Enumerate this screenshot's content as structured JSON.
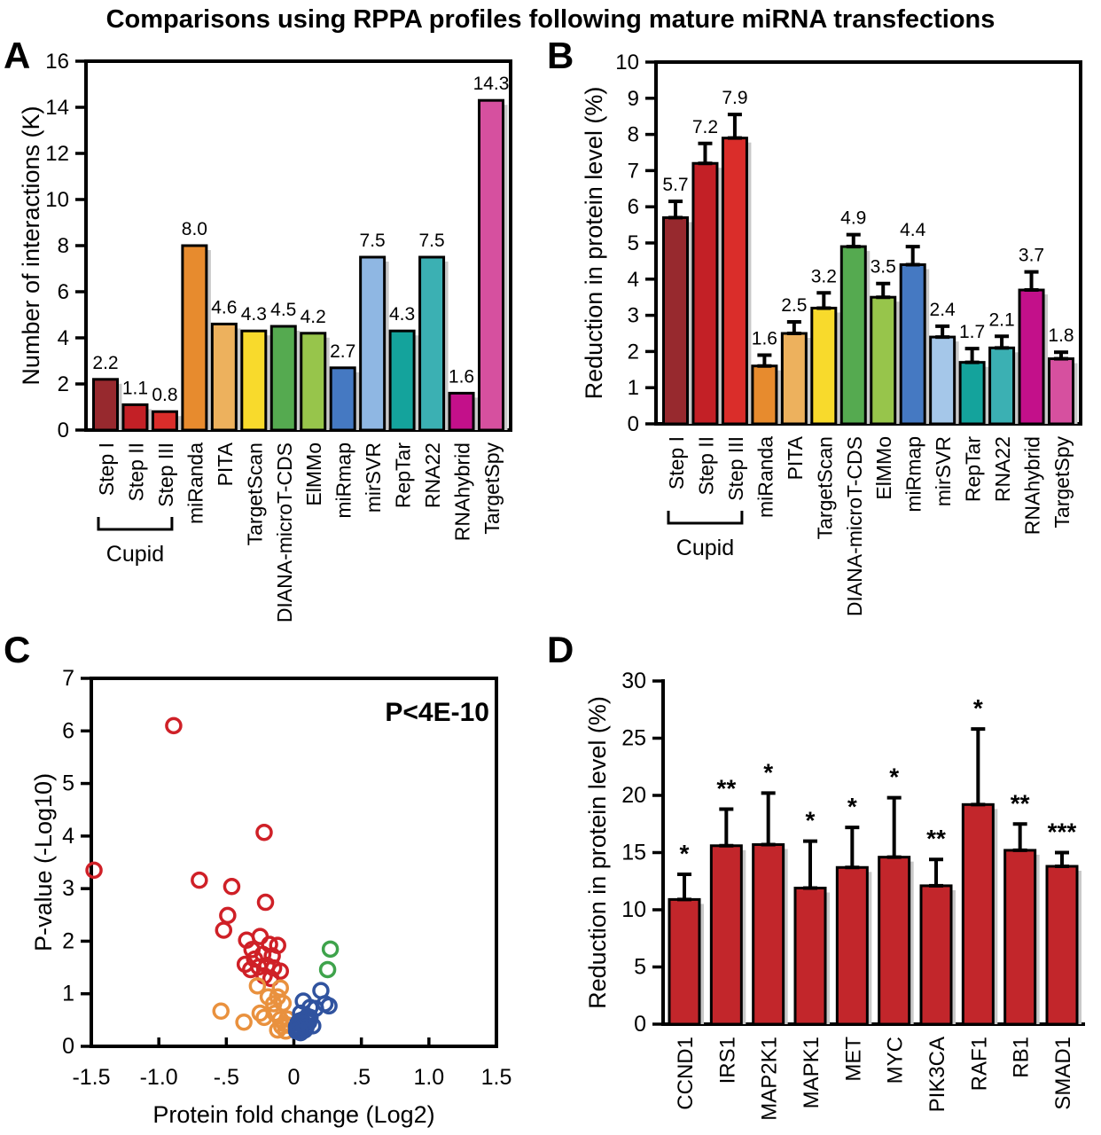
{
  "figure_title": "Comparisons using RPPA profiles following mature miRNA transfections",
  "panel_letters": [
    "A",
    "B",
    "C",
    "D"
  ],
  "colors": {
    "bar_outline": "#000000",
    "bar_shadow": "#c9c9c9",
    "panel_d_bar": "#c2262b"
  },
  "chart_data": [
    {
      "panel": "A",
      "type": "bar",
      "ylabel": "Number of interactions (K)",
      "ylim": [
        0,
        16
      ],
      "ytick_step": 2,
      "value_labels": true,
      "categories": [
        "Step I",
        "Step II",
        "Step III",
        "miRanda",
        "PITA",
        "TargetScan",
        "DIANA-microT-CDS",
        "ElMMo",
        "miRmap",
        "mirSVR",
        "RepTar",
        "RNA22",
        "RNAhybrid",
        "TargetSpy"
      ],
      "values": [
        2.2,
        1.1,
        0.8,
        8.0,
        4.6,
        4.3,
        4.5,
        4.2,
        2.7,
        7.5,
        4.3,
        7.5,
        1.6,
        14.3
      ],
      "colors": [
        "#97292e",
        "#c32026",
        "#da2d2a",
        "#e78b2e",
        "#edb15d",
        "#f8da2c",
        "#55aa50",
        "#97c54b",
        "#4579c2",
        "#8fb7e3",
        "#14a39c",
        "#3bb0b3",
        "#c3108a",
        "#d6509f"
      ],
      "group": {
        "label": "Cupid",
        "from": 0,
        "to": 2
      }
    },
    {
      "panel": "B",
      "type": "bar",
      "ylabel": "Reduction in protein level (%)",
      "ylim": [
        0,
        10
      ],
      "ytick_step": 1,
      "value_labels": true,
      "categories": [
        "Step I",
        "Step II",
        "Step III",
        "miRanda",
        "PITA",
        "TargetScan",
        "DIANA-microT-CDS",
        "ElMMo",
        "miRmap",
        "mirSVR",
        "RepTar",
        "RNA22",
        "RNAhybrid",
        "TargetSpy"
      ],
      "values": [
        5.7,
        7.2,
        7.9,
        1.6,
        2.5,
        3.2,
        4.9,
        3.5,
        4.4,
        2.4,
        1.7,
        2.1,
        3.7,
        1.8
      ],
      "errors": [
        0.45,
        0.55,
        0.65,
        0.3,
        0.32,
        0.42,
        0.33,
        0.38,
        0.5,
        0.3,
        0.38,
        0.32,
        0.5,
        0.18
      ],
      "colors": [
        "#97292e",
        "#c32026",
        "#da2d2a",
        "#e78b2e",
        "#edb15d",
        "#f8da2c",
        "#55aa50",
        "#97c54b",
        "#4579c2",
        "#a5c7e9",
        "#14a39c",
        "#3bb0b3",
        "#c3108a",
        "#d6509f"
      ],
      "group": {
        "label": "Cupid",
        "from": 0,
        "to": 2
      }
    },
    {
      "panel": "C",
      "type": "scatter",
      "xlabel": "Protein fold change (Log2)",
      "ylabel": "P-value (-Log10)",
      "annotation": "P<4E-10",
      "xlim": [
        -1.5,
        1.5
      ],
      "ylim": [
        0,
        7
      ],
      "xtick_labels": [
        "-1.5",
        "-1.0",
        "-.5",
        "0",
        ".5",
        "1.0",
        "1.5"
      ],
      "ytick_step": 1,
      "series": [
        {
          "name": "red",
          "color": "#cf2027",
          "points": [
            [
              -0.89,
              6.1
            ],
            [
              -0.22,
              4.07
            ],
            [
              -1.48,
              3.35
            ],
            [
              -0.7,
              3.16
            ],
            [
              -0.46,
              3.04
            ],
            [
              -0.21,
              2.74
            ],
            [
              -0.49,
              2.49
            ],
            [
              -0.52,
              2.21
            ],
            [
              -0.25,
              2.09
            ],
            [
              -0.35,
              2.02
            ],
            [
              -0.18,
              1.94
            ],
            [
              -0.12,
              1.92
            ],
            [
              -0.31,
              1.84
            ],
            [
              -0.23,
              1.75
            ],
            [
              -0.16,
              1.72
            ],
            [
              -0.29,
              1.66
            ],
            [
              -0.36,
              1.56
            ],
            [
              -0.2,
              1.54
            ],
            [
              -0.26,
              1.51
            ],
            [
              -0.15,
              1.49
            ],
            [
              -0.32,
              1.46
            ],
            [
              -0.1,
              1.43
            ],
            [
              -0.22,
              1.34
            ],
            [
              -0.17,
              1.29
            ]
          ]
        },
        {
          "name": "orange",
          "color": "#e9913e",
          "points": [
            [
              -0.27,
              1.15
            ],
            [
              -0.1,
              1.11
            ],
            [
              -0.19,
              0.94
            ],
            [
              -0.12,
              0.94
            ],
            [
              -0.15,
              0.81
            ],
            [
              -0.08,
              0.82
            ],
            [
              -0.54,
              0.67
            ],
            [
              -0.25,
              0.63
            ],
            [
              -0.14,
              0.63
            ],
            [
              -0.22,
              0.55
            ],
            [
              -0.05,
              0.52
            ],
            [
              -0.1,
              0.51
            ],
            [
              -0.37,
              0.46
            ],
            [
              -0.07,
              0.43
            ],
            [
              -0.04,
              0.4
            ],
            [
              -0.09,
              0.38
            ],
            [
              -0.12,
              0.31
            ],
            [
              -0.06,
              0.29
            ]
          ]
        },
        {
          "name": "blue",
          "color": "#30539f",
          "points": [
            [
              0.2,
              1.06
            ],
            [
              0.07,
              0.86
            ],
            [
              0.23,
              0.81
            ],
            [
              0.26,
              0.77
            ],
            [
              0.12,
              0.74
            ],
            [
              0.16,
              0.72
            ],
            [
              0.05,
              0.63
            ],
            [
              0.1,
              0.57
            ],
            [
              0.12,
              0.55
            ],
            [
              0.06,
              0.5
            ],
            [
              0.04,
              0.48
            ],
            [
              0.11,
              0.46
            ],
            [
              0.03,
              0.44
            ],
            [
              0.07,
              0.43
            ],
            [
              0.14,
              0.39
            ],
            [
              0.02,
              0.38
            ],
            [
              0.09,
              0.36
            ],
            [
              0.05,
              0.34
            ],
            [
              0.08,
              0.31
            ],
            [
              0.04,
              0.31
            ],
            [
              0.02,
              0.29
            ],
            [
              0.05,
              0.26
            ]
          ]
        },
        {
          "name": "green",
          "color": "#3ea34b",
          "points": [
            [
              0.27,
              1.85
            ],
            [
              0.25,
              1.46
            ]
          ]
        }
      ]
    },
    {
      "panel": "D",
      "type": "bar",
      "ylabel": "Reduction in protein level (%)",
      "ylim": [
        0,
        30
      ],
      "ytick_step": 5,
      "value_labels": false,
      "categories": [
        "CCND1",
        "IRS1",
        "MAP2K1",
        "MAPK1",
        "MET",
        "MYC",
        "PIK3CA",
        "RAF1",
        "RB1",
        "SMAD1"
      ],
      "values": [
        10.9,
        15.6,
        15.7,
        11.9,
        13.7,
        14.6,
        12.1,
        19.2,
        15.2,
        13.8
      ],
      "errors": [
        2.2,
        3.2,
        4.5,
        4.1,
        3.5,
        5.2,
        2.3,
        6.6,
        2.3,
        1.2
      ],
      "significance": [
        "*",
        "**",
        "*",
        "*",
        "*",
        "*",
        "**",
        "*",
        "**",
        "***"
      ],
      "colors": [
        "#c2262b",
        "#c2262b",
        "#c2262b",
        "#c2262b",
        "#c2262b",
        "#c2262b",
        "#c2262b",
        "#c2262b",
        "#c2262b",
        "#c2262b"
      ]
    }
  ]
}
